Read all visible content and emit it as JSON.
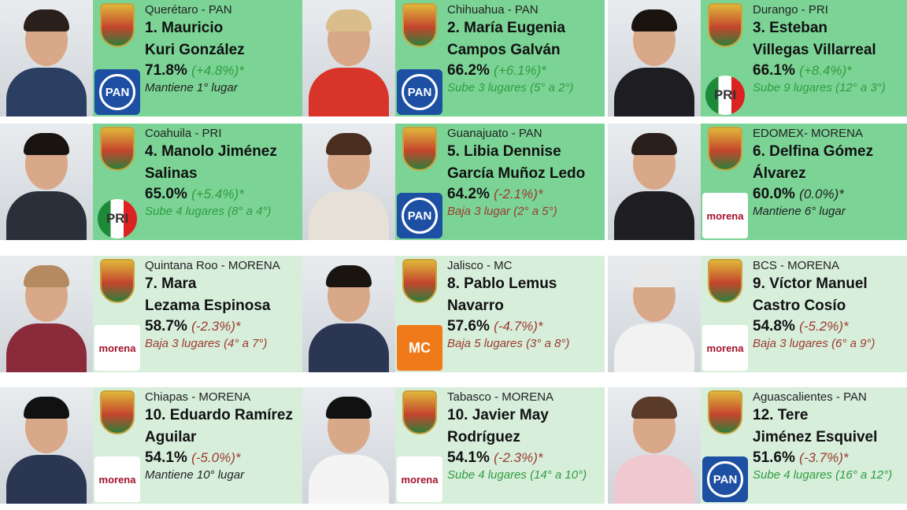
{
  "colors": {
    "top_bg": "#7bd496",
    "bottom_bg": "#d7eedb",
    "up": "#2f9c3f",
    "down": "#9c3a2c"
  },
  "cards": [
    {
      "state": "Querétaro - PAN",
      "name1": "1. Mauricio",
      "name2": "Kuri González",
      "pct": "71.8%",
      "change": "(+4.8%)*",
      "status": "Mantiene 1° lugar",
      "trend": "same",
      "party": "PAN"
    },
    {
      "state": "Chihuahua - PAN",
      "name1": "2. María Eugenia",
      "name2": "Campos Galván",
      "pct": "66.2%",
      "change": "(+6.1%)*",
      "status": "Sube 3 lugares (5° a 2°)",
      "trend": "up",
      "party": "PAN"
    },
    {
      "state": "Durango - PRI",
      "name1": "3. Esteban",
      "name2": "Villegas Villarreal",
      "pct": "66.1%",
      "change": "(+8.4%)*",
      "status": "Sube 9 lugares (12° a 3°)",
      "trend": "up",
      "party": "PRI"
    },
    {
      "state": "Coahuila - PRI",
      "name1": "4. Manolo Jiménez",
      "name2": "Salinas",
      "pct": "65.0%",
      "change": "(+5.4%)*",
      "status": "Sube 4 lugares (8° a 4°)",
      "trend": "up",
      "party": "PRI"
    },
    {
      "state": "Guanajuato - PAN",
      "name1": "5. Libia Dennise",
      "name2": "García Muñoz Ledo",
      "pct": "64.2%",
      "change": "(-2.1%)*",
      "status": "Baja 3 lugar (2° a 5°)",
      "trend": "down",
      "party": "PAN"
    },
    {
      "state": "EDOMEX-  MORENA",
      "name1": "6. Delfina Gómez",
      "name2": "Álvarez",
      "pct": "60.0%",
      "change": "(0.0%)*",
      "status": "Mantiene 6° lugar",
      "trend": "same",
      "party": "morena"
    },
    {
      "state": "Quintana Roo - MORENA",
      "name1": "7. Mara",
      "name2": "Lezama Espinosa",
      "pct": "58.7%",
      "change": "(-2.3%)*",
      "status": "Baja 3 lugares (4° a 7°)",
      "trend": "down",
      "party": "morena"
    },
    {
      "state": "Jalisco - MC",
      "name1": "8. Pablo Lemus",
      "name2": "Navarro",
      "pct": "57.6%",
      "change": "(-4.7%)*",
      "status": "Baja 5 lugares (3° a 8°)",
      "trend": "down",
      "party": "MC"
    },
    {
      "state": "BCS - MORENA",
      "name1": "9. Víctor Manuel",
      "name2": "Castro Cosío",
      "pct": "54.8%",
      "change": "(-5.2%)*",
      "status": "Baja 3 lugares (6° a 9°)",
      "trend": "down",
      "party": "morena"
    },
    {
      "state": "Chiapas - MORENA",
      "name1": "10. Eduardo Ramírez",
      "name2": "Aguilar",
      "pct": "54.1%",
      "change": "(-5.0%)*",
      "status": "Mantiene 10° lugar",
      "trend": "same",
      "party": "morena"
    },
    {
      "state": "Tabasco - MORENA",
      "name1": "10. Javier May",
      "name2": "Rodríguez",
      "pct": "54.1%",
      "change": "(-2.3%)*",
      "status": "Sube 4 lugares (14° a 10°)",
      "trend": "up",
      "party": "morena"
    },
    {
      "state": "Aguascalientes - PAN",
      "name1": "12. Tere",
      "name2": "Jiménez Esquivel",
      "pct": "51.6%",
      "change": "(-3.7%)*",
      "status": "Sube 4 lugares (16° a 12°)",
      "trend": "up",
      "party": "PAN"
    }
  ]
}
